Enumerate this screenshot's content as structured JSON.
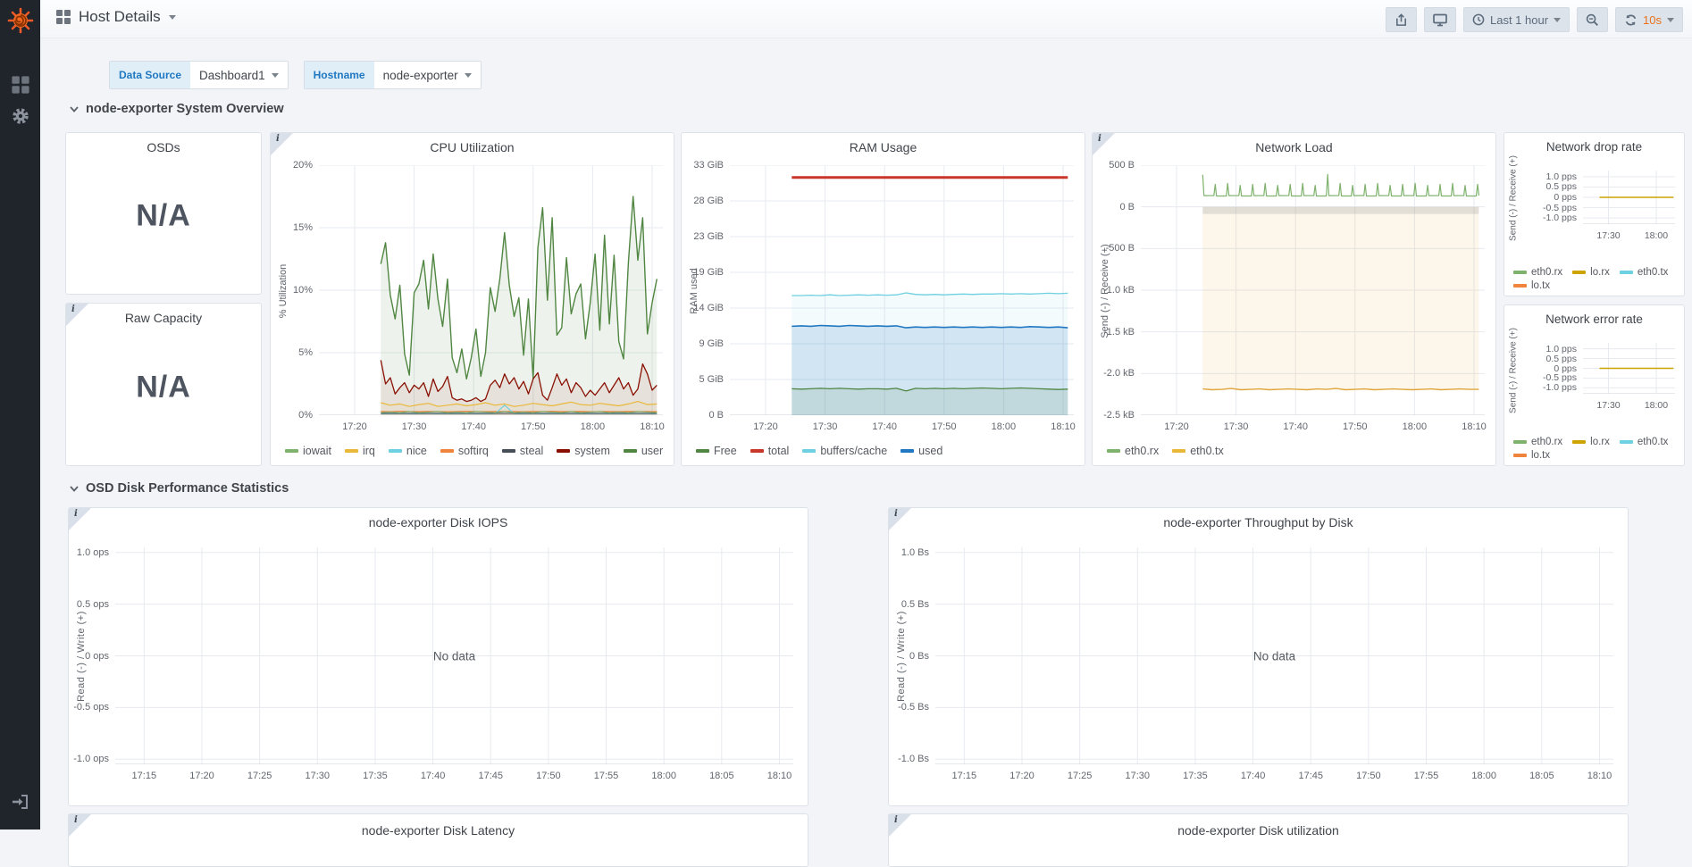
{
  "header": {
    "title": "Host Details",
    "time_range": "Last 1 hour",
    "refresh_interval": "10s"
  },
  "variables": [
    {
      "label": "Data Source",
      "value": "Dashboard1"
    },
    {
      "label": "Hostname",
      "value": "node-exporter"
    }
  ],
  "sections": [
    {
      "title": "node-exporter System Overview"
    },
    {
      "title": "OSD Disk Performance Statistics"
    }
  ],
  "stat_panels": [
    {
      "title": "OSDs",
      "value": "N/A"
    },
    {
      "title": "Raw Capacity",
      "value": "N/A"
    }
  ],
  "partial_panels": [
    {
      "title": "node-exporter Disk Latency"
    },
    {
      "title": "node-exporter Disk utilization"
    }
  ],
  "labels": {
    "no_data": "No data"
  },
  "colors": {
    "accent_orange": "#e8721c",
    "variable_blue": "#1f78c1",
    "sidebar_bg": "#20242b"
  },
  "charts": {
    "cpu": {
      "title": "CPU Utilization",
      "ylabel": "% Utilization",
      "xlim": [
        14,
        71.8
      ],
      "ylim": [
        0,
        20
      ],
      "x_ticks": [
        [
          20,
          "17:20"
        ],
        [
          30,
          "17:30"
        ],
        [
          40,
          "17:40"
        ],
        [
          50,
          "17:50"
        ],
        [
          60,
          "18:00"
        ],
        [
          70,
          "18:10"
        ]
      ],
      "y_ticks": [
        [
          0,
          "0%"
        ],
        [
          5,
          "5%"
        ],
        [
          10,
          "10%"
        ],
        [
          15,
          "15%"
        ],
        [
          20,
          "20%"
        ]
      ],
      "legend": [
        {
          "label": "iowait",
          "color": "#7eb26d"
        },
        {
          "label": "irq",
          "color": "#eab839"
        },
        {
          "label": "nice",
          "color": "#6ed0e0"
        },
        {
          "label": "softirq",
          "color": "#ef843c"
        },
        {
          "label": "steal",
          "color": "#464f58"
        },
        {
          "label": "system",
          "color": "#890f02"
        },
        {
          "label": "user",
          "color": "#508642"
        }
      ],
      "series": [
        {
          "name": "user",
          "color": "#508642",
          "width": 1.4,
          "fill": 0.1,
          "x0": 24.4,
          "dx": 0.8,
          "values": [
            12.1,
            13.8,
            9.6,
            7.7,
            10.4,
            4.9,
            3.2,
            9.8,
            10.5,
            12.4,
            8.5,
            12.9,
            9.3,
            7.1,
            10.9,
            4.6,
            3.4,
            5.3,
            2.9,
            4.6,
            6.9,
            3.1,
            5.0,
            10.2,
            8.3,
            10.9,
            14.6,
            10.4,
            7.9,
            9.4,
            4.8,
            9.3,
            2.9,
            13.4,
            16.6,
            9.2,
            15.8,
            6.4,
            7.0,
            12.6,
            8.1,
            9.7,
            10.5,
            6.1,
            9.0,
            12.9,
            6.8,
            14.4,
            7.3,
            12.8,
            5.9,
            4.5,
            12.2,
            17.5,
            12.4,
            15.8,
            6.5,
            9.0,
            10.9
          ]
        },
        {
          "name": "system",
          "color": "#890f02",
          "width": 1.3,
          "fill": 0.07,
          "x0": 24.4,
          "dx": 0.8,
          "values": [
            4.4,
            2.5,
            3.0,
            1.7,
            2.2,
            2.6,
            1.8,
            2.4,
            2.1,
            2.6,
            1.5,
            2.9,
            1.9,
            2.3,
            3.1,
            1.4,
            1.2,
            1.3,
            1.1,
            1.2,
            1.4,
            1.1,
            1.3,
            2.4,
            2.8,
            2.2,
            3.3,
            2.5,
            3.0,
            2.1,
            2.7,
            1.7,
            2.9,
            3.4,
            1.6,
            1.2,
            2.2,
            3.3,
            2.4,
            2.9,
            1.8,
            2.6,
            2.2,
            1.5,
            2.0,
            1.6,
            2.1,
            2.6,
            1.8,
            2.4,
            3.0,
            2.1,
            2.6,
            1.6,
            2.1,
            4.1,
            3.3,
            2.0,
            2.4
          ]
        },
        {
          "name": "irq",
          "color": "#eab839",
          "width": 1.2,
          "fill": 0.05,
          "x0": 24.4,
          "dx": 1.6,
          "values": [
            1.0,
            0.8,
            0.9,
            0.7,
            0.85,
            0.95,
            0.7,
            0.8,
            0.9,
            0.75,
            0.85,
            1.0,
            0.8,
            0.9,
            0.7,
            0.8,
            0.95,
            0.85,
            0.75,
            0.9,
            1.05,
            0.85,
            0.8,
            0.95,
            0.85,
            0.75,
            0.9,
            1.1,
            0.85,
            0.9
          ]
        },
        {
          "name": "softirq",
          "color": "#ef843c",
          "width": 1.1,
          "x0": 24.4,
          "dx": 1.6,
          "values": [
            0.3,
            0.28,
            0.32,
            0.3,
            0.29,
            0.31,
            0.3,
            0.28,
            0.3,
            0.32,
            0.3,
            0.29,
            0.3,
            0.31,
            0.3,
            0.28,
            0.3,
            0.3,
            0.32,
            0.29,
            0.3,
            0.31,
            0.28,
            0.3,
            0.3,
            0.29,
            0.31,
            0.3,
            0.3,
            0.29
          ]
        },
        {
          "name": "nice",
          "color": "#6ed0e0",
          "width": 1.1,
          "x0": 24.4,
          "dx": 1.6,
          "values": [
            0.12,
            0.12,
            0.13,
            0.12,
            0.12,
            0.13,
            0.12,
            0.12,
            0.12,
            0.13,
            0.12,
            0.12,
            0.13,
            0.8,
            0.12,
            0.12,
            0.13,
            0.12,
            0.12,
            0.12,
            0.13,
            0.12,
            0.12,
            0.13,
            0.12,
            0.12,
            0.12,
            0.13,
            0.12,
            0.12
          ]
        },
        {
          "name": "steal",
          "color": "#464f58",
          "width": 1.1,
          "const": 0.15,
          "x0": 24.4,
          "x1": 70.8
        },
        {
          "name": "iowait",
          "color": "#7eb26d",
          "width": 1.1,
          "x0": 24.4,
          "dx": 1.6,
          "values": [
            0.2,
            0.25,
            0.2,
            0.3,
            0.2,
            0.25,
            0.3,
            0.2,
            0.25,
            0.2,
            0.3,
            0.25,
            0.2,
            0.3,
            0.2,
            0.25,
            0.2,
            0.3,
            0.25,
            0.2,
            0.3,
            0.2,
            0.25,
            0.3,
            0.2,
            0.25,
            0.2,
            0.3,
            0.25,
            0.2
          ]
        }
      ]
    },
    "ram": {
      "title": "RAM Usage",
      "ylabel": "RAM used",
      "xlim": [
        14,
        71.8
      ],
      "ylim": [
        0,
        32.6
      ],
      "x_ticks": [
        [
          20,
          "17:20"
        ],
        [
          30,
          "17:30"
        ],
        [
          40,
          "17:40"
        ],
        [
          50,
          "17:50"
        ],
        [
          60,
          "18:00"
        ],
        [
          70,
          "18:10"
        ]
      ],
      "y_ticks": [
        [
          0,
          "0 B"
        ],
        [
          4.66,
          "5 GiB"
        ],
        [
          9.31,
          "9 GiB"
        ],
        [
          13.97,
          "14 GiB"
        ],
        [
          18.63,
          "19 GiB"
        ],
        [
          23.28,
          "23 GiB"
        ],
        [
          27.94,
          "28 GiB"
        ],
        [
          32.6,
          "33 GiB"
        ]
      ],
      "legend": [
        {
          "label": "Free",
          "color": "#508642"
        },
        {
          "label": "total",
          "color": "#c9372a"
        },
        {
          "label": "buffers/cache",
          "color": "#6ed0e0"
        },
        {
          "label": "used",
          "color": "#1f78c1"
        }
      ],
      "series": [
        {
          "name": "buffers/cache",
          "color": "#6ed0e0",
          "width": 1.3,
          "fill": 0.08,
          "x0": 24.4,
          "dx": 1.6,
          "values": [
            15.6,
            15.6,
            15.65,
            15.6,
            15.7,
            15.6,
            15.65,
            15.7,
            15.65,
            15.7,
            15.65,
            15.7,
            15.95,
            15.75,
            15.7,
            15.75,
            15.7,
            15.75,
            15.8,
            15.75,
            15.8,
            15.8,
            15.85,
            15.8,
            15.85,
            15.8,
            15.85,
            15.9,
            15.85,
            15.9
          ]
        },
        {
          "name": "used",
          "color": "#1f78c1",
          "width": 1.6,
          "fill": 0.16,
          "x0": 24.4,
          "dx": 1.6,
          "values": [
            11.6,
            11.65,
            11.6,
            11.7,
            11.65,
            11.6,
            11.7,
            11.65,
            11.6,
            11.65,
            11.6,
            11.65,
            11.4,
            11.5,
            11.45,
            11.5,
            11.45,
            11.5,
            11.45,
            11.5,
            11.45,
            11.5,
            11.45,
            11.5,
            11.45,
            11.55,
            11.5,
            11.45,
            11.5,
            11.4
          ]
        },
        {
          "name": "Free",
          "color": "#508642",
          "width": 1.3,
          "fill": 0.12,
          "x0": 24.4,
          "dx": 1.6,
          "values": [
            3.45,
            3.4,
            3.45,
            3.5,
            3.45,
            3.5,
            3.45,
            3.4,
            3.45,
            3.45,
            3.4,
            3.5,
            3.15,
            3.5,
            3.45,
            3.5,
            3.45,
            3.5,
            3.45,
            3.5,
            3.55,
            3.5,
            3.45,
            3.5,
            3.55,
            3.5,
            3.45,
            3.4,
            3.35,
            3.4
          ]
        },
        {
          "name": "total",
          "color": "#c9372a",
          "width": 3,
          "const": 31.0,
          "x0": 24.4,
          "x1": 70.8
        }
      ]
    },
    "net_load": {
      "title": "Network Load",
      "ylabel": "Send (-) / Receive (+)",
      "xlim": [
        14,
        71.8
      ],
      "ylim": [
        -2500,
        500
      ],
      "x_ticks": [
        [
          20,
          "17:20"
        ],
        [
          30,
          "17:30"
        ],
        [
          40,
          "17:40"
        ],
        [
          50,
          "17:50"
        ],
        [
          60,
          "18:00"
        ],
        [
          70,
          "18:10"
        ]
      ],
      "y_ticks": [
        [
          500,
          "500 B"
        ],
        [
          0,
          "0 B"
        ],
        [
          -500,
          "-500 B"
        ],
        [
          -1000,
          "-1.0 kB"
        ],
        [
          -1500,
          "-1.5 kB"
        ],
        [
          -2000,
          "-2.0 kB"
        ],
        [
          -2500,
          "-2.5 kB"
        ]
      ],
      "legend": [
        {
          "label": "eth0.rx",
          "color": "#7eb26d"
        },
        {
          "label": "eth0.tx",
          "color": "#eab839"
        }
      ],
      "series": [
        {
          "name": "band",
          "no_stroke": true,
          "fill_color": "rgba(115,125,135,0.20)",
          "const": -85,
          "x0": 24.4,
          "x1": 70.8,
          "fill": 1
        },
        {
          "name": "eth0.tx",
          "color": "#dfa53a",
          "width": 1.4,
          "fill": 0.1,
          "x0": 24.4,
          "dx": 1.6,
          "values": [
            -2185,
            -2195,
            -2190,
            -2180,
            -2195,
            -2190,
            -2185,
            -2195,
            -2190,
            -2185,
            -2190,
            -2195,
            -2185,
            -2190,
            -2180,
            -2195,
            -2190,
            -2185,
            -2195,
            -2190,
            -2185,
            -2190,
            -2195,
            -2190,
            -2185,
            -2195,
            -2190,
            -2185,
            -2190,
            -2190
          ]
        },
        {
          "name": "eth0.rx",
          "color": "#7eb26d",
          "width": 1.2,
          "pattern": {
            "start": 24.4,
            "end": 70.8,
            "base": 130,
            "period": 2.1,
            "spike": 270,
            "spike_width": 0.22,
            "tall": [
              [
                24.4,
                385
              ],
              [
                45.5,
                390
              ]
            ]
          }
        }
      ]
    },
    "net_drop": {
      "title": "Network drop rate",
      "ylabel": "Send (-) / Receive (+)",
      "xlim": [
        14,
        71.8
      ],
      "ylim": [
        -1.3,
        1.3
      ],
      "x_ticks": [
        [
          30,
          "17:30"
        ],
        [
          60,
          "18:00"
        ]
      ],
      "y_ticks": [
        [
          1,
          "1.0 pps"
        ],
        [
          0.5,
          "0.5 pps"
        ],
        [
          0,
          "0 pps"
        ],
        [
          -0.5,
          "-0.5 pps"
        ],
        [
          -1,
          "-1.0 pps"
        ]
      ],
      "legend": [
        {
          "label": "eth0.rx",
          "color": "#7eb26d"
        },
        {
          "label": "lo.rx",
          "color": "#cca300"
        },
        {
          "label": "eth0.tx",
          "color": "#6ed0e0"
        },
        {
          "label": "lo.tx",
          "color": "#ef843c"
        }
      ],
      "series": [
        {
          "name": "lo.rx",
          "color": "#cca300",
          "width": 1.5,
          "const": 0,
          "x0": 24.4,
          "x1": 70.8
        }
      ]
    },
    "net_err": {
      "title": "Network error rate",
      "ylabel": "Send (-) / Receive (+)",
      "xlim": [
        14,
        71.8
      ],
      "ylim": [
        -1.3,
        1.3
      ],
      "x_ticks": [
        [
          30,
          "17:30"
        ],
        [
          60,
          "18:00"
        ]
      ],
      "y_ticks": [
        [
          1,
          "1.0 pps"
        ],
        [
          0.5,
          "0.5 pps"
        ],
        [
          0,
          "0 pps"
        ],
        [
          -0.5,
          "-0.5 pps"
        ],
        [
          -1,
          "-1.0 pps"
        ]
      ],
      "legend": [
        {
          "label": "eth0.rx",
          "color": "#7eb26d"
        },
        {
          "label": "lo.rx",
          "color": "#cca300"
        },
        {
          "label": "eth0.tx",
          "color": "#6ed0e0"
        },
        {
          "label": "lo.tx",
          "color": "#ef843c"
        }
      ],
      "series": [
        {
          "name": "lo.rx",
          "color": "#cca300",
          "width": 1.5,
          "const": 0,
          "x0": 24.4,
          "x1": 70.8
        }
      ]
    },
    "disk_iops": {
      "title": "node-exporter Disk IOPS",
      "ylabel": "Read (-) / Write (+)",
      "xlim": [
        12.5,
        71.2
      ],
      "ylim": [
        -1.05,
        1.05
      ],
      "no_data": true,
      "x_ticks": [
        [
          15,
          "17:15"
        ],
        [
          20,
          "17:20"
        ],
        [
          25,
          "17:25"
        ],
        [
          30,
          "17:30"
        ],
        [
          35,
          "17:35"
        ],
        [
          40,
          "17:40"
        ],
        [
          45,
          "17:45"
        ],
        [
          50,
          "17:50"
        ],
        [
          55,
          "17:55"
        ],
        [
          60,
          "18:00"
        ],
        [
          65,
          "18:05"
        ],
        [
          70,
          "18:10"
        ]
      ],
      "y_ticks": [
        [
          1,
          "1.0 ops"
        ],
        [
          0.5,
          "0.5 ops"
        ],
        [
          0,
          "0 ops"
        ],
        [
          -0.5,
          "-0.5 ops"
        ],
        [
          -1,
          "-1.0 ops"
        ]
      ],
      "legend": [],
      "series": []
    },
    "disk_tput": {
      "title": "node-exporter Throughput by Disk",
      "ylabel": "Read (-) / Write (+)",
      "xlim": [
        12.5,
        71.2
      ],
      "ylim": [
        -1.05,
        1.05
      ],
      "no_data": true,
      "x_ticks": [
        [
          15,
          "17:15"
        ],
        [
          20,
          "17:20"
        ],
        [
          25,
          "17:25"
        ],
        [
          30,
          "17:30"
        ],
        [
          35,
          "17:35"
        ],
        [
          40,
          "17:40"
        ],
        [
          45,
          "17:45"
        ],
        [
          50,
          "17:50"
        ],
        [
          55,
          "17:55"
        ],
        [
          60,
          "18:00"
        ],
        [
          65,
          "18:05"
        ],
        [
          70,
          "18:10"
        ]
      ],
      "y_ticks": [
        [
          1,
          "1.0 Bs"
        ],
        [
          0.5,
          "0.5 Bs"
        ],
        [
          0,
          "0 Bs"
        ],
        [
          -0.5,
          "-0.5 Bs"
        ],
        [
          -1,
          "-1.0 Bs"
        ]
      ],
      "legend": [],
      "series": []
    }
  }
}
